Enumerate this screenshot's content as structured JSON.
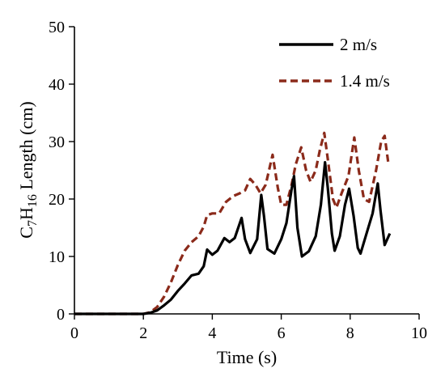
{
  "chart_data": {
    "type": "line",
    "title": "",
    "xlabel": "Time (s)",
    "ylabel": {
      "prefix": "C",
      "sub1": "7",
      "mid": "H",
      "sub2": "16",
      "suffix": " Length (cm)"
    },
    "xlim": [
      0,
      10
    ],
    "ylim": [
      0,
      50
    ],
    "x_ticks": [
      "0",
      "2",
      "4",
      "6",
      "8",
      "10"
    ],
    "y_ticks": [
      "0",
      "10",
      "20",
      "30",
      "40",
      "50"
    ],
    "grid": false,
    "legend_position": "top-right",
    "series": [
      {
        "name": "2 m/s",
        "color": "#000000",
        "style": "solid",
        "points": [
          [
            0,
            0
          ],
          [
            2.0,
            0
          ],
          [
            2.2,
            0.2
          ],
          [
            2.4,
            0.6
          ],
          [
            2.6,
            1.5
          ],
          [
            2.8,
            2.5
          ],
          [
            3.0,
            4.0
          ],
          [
            3.2,
            5.3
          ],
          [
            3.4,
            6.7
          ],
          [
            3.6,
            7.0
          ],
          [
            3.75,
            8.3
          ],
          [
            3.85,
            11.2
          ],
          [
            4.0,
            10.3
          ],
          [
            4.15,
            11.0
          ],
          [
            4.35,
            13.2
          ],
          [
            4.5,
            12.5
          ],
          [
            4.65,
            13.2
          ],
          [
            4.85,
            16.7
          ],
          [
            4.95,
            13.0
          ],
          [
            5.1,
            10.6
          ],
          [
            5.3,
            13.0
          ],
          [
            5.42,
            20.7
          ],
          [
            5.5,
            17.0
          ],
          [
            5.6,
            11.3
          ],
          [
            5.8,
            10.5
          ],
          [
            6.0,
            13.0
          ],
          [
            6.15,
            15.8
          ],
          [
            6.3,
            21.7
          ],
          [
            6.37,
            24.0
          ],
          [
            6.47,
            15.0
          ],
          [
            6.6,
            10.0
          ],
          [
            6.8,
            10.9
          ],
          [
            7.0,
            13.5
          ],
          [
            7.15,
            19.0
          ],
          [
            7.27,
            26.4
          ],
          [
            7.35,
            22.0
          ],
          [
            7.47,
            14.0
          ],
          [
            7.55,
            11.0
          ],
          [
            7.7,
            13.5
          ],
          [
            7.85,
            19.0
          ],
          [
            7.97,
            21.8
          ],
          [
            8.1,
            17.0
          ],
          [
            8.22,
            11.5
          ],
          [
            8.3,
            10.5
          ],
          [
            8.5,
            14.5
          ],
          [
            8.65,
            17.5
          ],
          [
            8.8,
            22.7
          ],
          [
            8.88,
            18.0
          ],
          [
            9.0,
            12.0
          ],
          [
            9.15,
            14.0
          ]
        ]
      },
      {
        "name": "1.4 m/s",
        "color": "#8b2a1a",
        "style": "dashed",
        "points": [
          [
            0,
            0
          ],
          [
            2.0,
            0
          ],
          [
            2.2,
            0.3
          ],
          [
            2.4,
            1.2
          ],
          [
            2.6,
            3.0
          ],
          [
            2.8,
            5.5
          ],
          [
            3.0,
            8.5
          ],
          [
            3.2,
            11.0
          ],
          [
            3.4,
            12.5
          ],
          [
            3.6,
            13.5
          ],
          [
            3.75,
            15.2
          ],
          [
            3.85,
            17.2
          ],
          [
            4.0,
            17.5
          ],
          [
            4.2,
            17.5
          ],
          [
            4.4,
            19.5
          ],
          [
            4.6,
            20.5
          ],
          [
            4.8,
            21.0
          ],
          [
            4.95,
            21.5
          ],
          [
            5.1,
            23.5
          ],
          [
            5.25,
            22.5
          ],
          [
            5.4,
            21.0
          ],
          [
            5.55,
            22.5
          ],
          [
            5.75,
            27.7
          ],
          [
            5.9,
            22.0
          ],
          [
            6.0,
            19.0
          ],
          [
            6.15,
            19.0
          ],
          [
            6.3,
            22.5
          ],
          [
            6.42,
            26.0
          ],
          [
            6.58,
            29.0
          ],
          [
            6.72,
            25.0
          ],
          [
            6.85,
            23.0
          ],
          [
            7.0,
            25.0
          ],
          [
            7.12,
            28.5
          ],
          [
            7.25,
            31.5
          ],
          [
            7.35,
            27.0
          ],
          [
            7.5,
            20.0
          ],
          [
            7.6,
            18.5
          ],
          [
            7.75,
            21.0
          ],
          [
            7.95,
            24.0
          ],
          [
            8.12,
            30.7
          ],
          [
            8.25,
            25.0
          ],
          [
            8.4,
            20.0
          ],
          [
            8.55,
            19.5
          ],
          [
            8.75,
            25.0
          ],
          [
            8.9,
            30.0
          ],
          [
            9.0,
            31.0
          ],
          [
            9.1,
            26.5
          ]
        ]
      }
    ]
  }
}
